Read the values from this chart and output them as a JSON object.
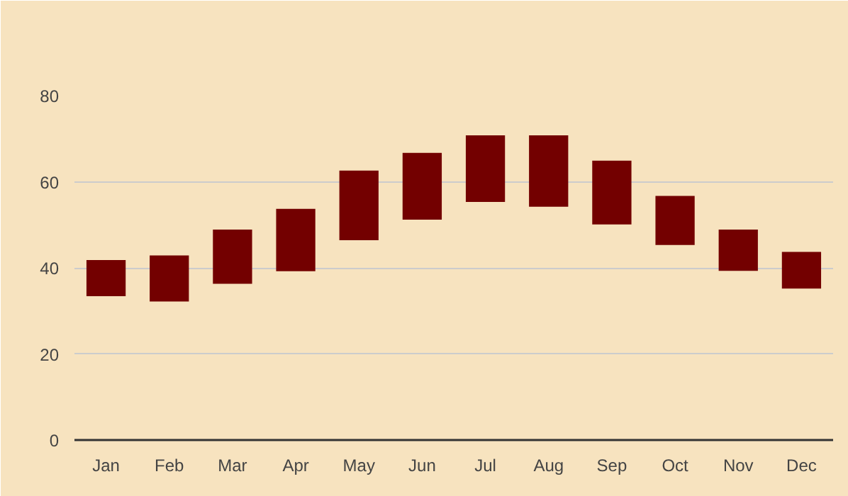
{
  "chart_data": {
    "type": "bar",
    "categories": [
      "Jan",
      "Feb",
      "Mar",
      "Apr",
      "May",
      "Jun",
      "Jul",
      "Aug",
      "Sep",
      "Oct",
      "Nov",
      "Dec"
    ],
    "base": [
      33.4,
      32.2,
      36.3,
      39.2,
      46.4,
      51.2,
      55.3,
      54.2,
      50.1,
      45.3,
      39.3,
      35.2
    ],
    "values": [
      8.4,
      10.7,
      12.6,
      14.5,
      16.2,
      15.5,
      15.5,
      16.6,
      14.8,
      11.4,
      9.6,
      8.5
    ],
    "color": "#730000",
    "ylim": [
      0,
      80
    ],
    "yticks": [
      0,
      20,
      40,
      60,
      80
    ],
    "grid": "y"
  }
}
